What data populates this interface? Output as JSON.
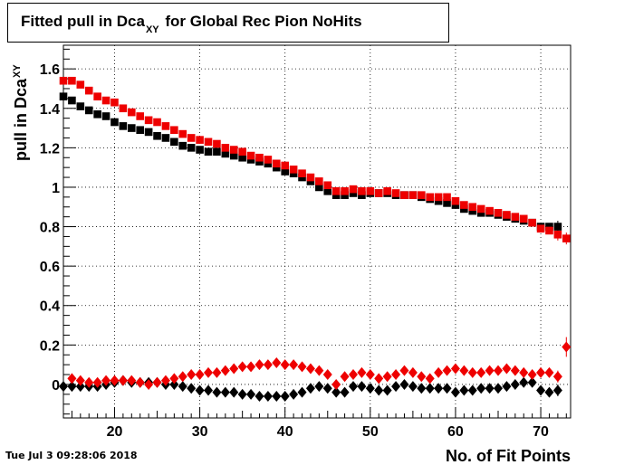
{
  "header": {
    "title_main": "Fitted pull in Dca",
    "title_sub": "XY",
    "title_rest": " for Global Rec Pion NoHits"
  },
  "footer": {
    "timestamp": "Tue Jul  3 09:28:06 2018"
  },
  "chart_data": {
    "type": "scatter",
    "title": "Fitted pull in Dca_XY for Global Rec Pion NoHits",
    "xlabel": "No. of Fit Points",
    "ylabel": "pull in Dca_XY",
    "xlim": [
      14,
      73.5
    ],
    "ylim": [
      -0.17,
      1.72
    ],
    "grid": true,
    "x_ticks": [
      "20",
      "30",
      "40",
      "50",
      "60",
      "70"
    ],
    "y_ticks": [
      "0",
      "0.2",
      "0.4",
      "0.6",
      "0.8",
      "1",
      "1.2",
      "1.4",
      "1.6"
    ],
    "x": [
      14,
      15,
      16,
      17,
      18,
      19,
      20,
      21,
      22,
      23,
      24,
      25,
      26,
      27,
      28,
      29,
      30,
      31,
      32,
      33,
      34,
      35,
      36,
      37,
      38,
      39,
      40,
      41,
      42,
      43,
      44,
      45,
      46,
      47,
      48,
      49,
      50,
      51,
      52,
      53,
      54,
      55,
      56,
      57,
      58,
      59,
      60,
      61,
      62,
      63,
      64,
      65,
      66,
      67,
      68,
      69,
      70,
      71,
      72,
      73
    ],
    "series": [
      {
        "color": "#000000",
        "marker": "square",
        "values": [
          1.46,
          1.44,
          1.41,
          1.39,
          1.37,
          1.36,
          1.33,
          1.31,
          1.3,
          1.29,
          1.28,
          1.26,
          1.25,
          1.23,
          1.21,
          1.2,
          1.19,
          1.18,
          1.18,
          1.17,
          1.16,
          1.15,
          1.14,
          1.13,
          1.12,
          1.1,
          1.08,
          1.07,
          1.05,
          1.03,
          1.0,
          0.98,
          0.96,
          0.96,
          0.97,
          0.96,
          0.97,
          0.97,
          0.97,
          0.96,
          0.96,
          0.96,
          0.95,
          0.94,
          0.93,
          0.92,
          0.91,
          0.89,
          0.88,
          0.87,
          0.87,
          0.86,
          0.85,
          0.84,
          0.83,
          0.82,
          0.8,
          0.8,
          0.8,
          null
        ]
      },
      {
        "color": "#ee0000",
        "marker": "square",
        "values": [
          1.54,
          1.54,
          1.52,
          1.49,
          1.46,
          1.44,
          1.43,
          1.4,
          1.38,
          1.36,
          1.34,
          1.33,
          1.31,
          1.29,
          1.27,
          1.25,
          1.24,
          1.23,
          1.22,
          1.2,
          1.19,
          1.18,
          1.16,
          1.15,
          1.14,
          1.12,
          1.11,
          1.09,
          1.07,
          1.05,
          1.03,
          1.01,
          0.98,
          0.98,
          0.99,
          0.98,
          0.98,
          0.97,
          0.98,
          0.97,
          0.96,
          0.96,
          0.96,
          0.95,
          0.95,
          0.95,
          0.93,
          0.91,
          0.9,
          0.89,
          0.88,
          0.87,
          0.86,
          0.85,
          0.84,
          0.82,
          0.79,
          0.78,
          0.76,
          0.74
        ]
      },
      {
        "color": "#000000",
        "marker": "diamond",
        "values": [
          -0.01,
          -0.01,
          -0.01,
          -0.01,
          -0.01,
          0.0,
          0.01,
          0.02,
          0.01,
          0.01,
          0.01,
          0.01,
          0.0,
          0.0,
          -0.01,
          -0.02,
          -0.03,
          -0.03,
          -0.04,
          -0.04,
          -0.04,
          -0.05,
          -0.05,
          -0.06,
          -0.06,
          -0.06,
          -0.06,
          -0.05,
          -0.04,
          -0.02,
          -0.01,
          -0.02,
          -0.04,
          -0.04,
          -0.01,
          -0.01,
          -0.02,
          -0.03,
          -0.03,
          -0.01,
          0.0,
          -0.01,
          -0.02,
          -0.02,
          -0.02,
          -0.02,
          -0.04,
          -0.03,
          -0.03,
          -0.02,
          -0.02,
          -0.02,
          -0.01,
          0.0,
          0.01,
          0.01,
          -0.03,
          -0.04,
          -0.03,
          null
        ]
      },
      {
        "color": "#ee0000",
        "marker": "diamond",
        "values": [
          null,
          0.03,
          0.02,
          0.01,
          0.01,
          0.02,
          0.02,
          0.02,
          0.02,
          0.01,
          0.0,
          0.01,
          0.02,
          0.03,
          0.04,
          0.05,
          0.05,
          0.06,
          0.06,
          0.07,
          0.08,
          0.09,
          0.09,
          0.1,
          0.1,
          0.11,
          0.1,
          0.1,
          0.09,
          0.08,
          0.07,
          0.05,
          0.0,
          0.04,
          0.05,
          0.06,
          0.05,
          0.03,
          0.04,
          0.05,
          0.07,
          0.06,
          0.04,
          0.03,
          0.06,
          0.07,
          0.08,
          0.07,
          0.06,
          0.06,
          0.07,
          0.07,
          0.08,
          0.07,
          0.06,
          0.05,
          0.06,
          0.06,
          0.04,
          0.19
        ]
      }
    ]
  }
}
